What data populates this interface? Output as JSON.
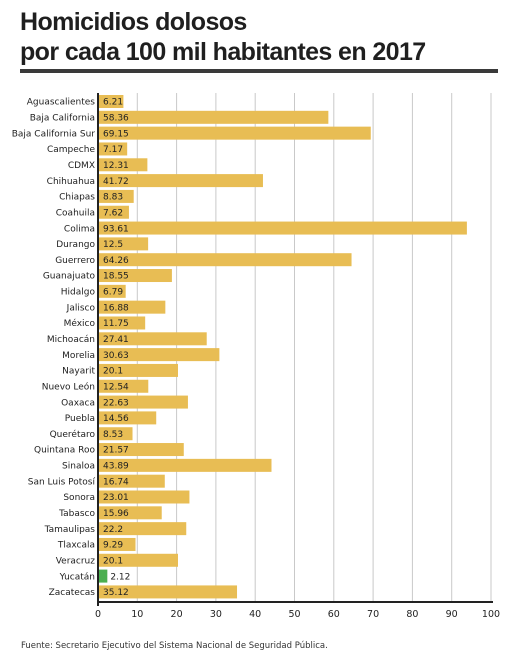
{
  "title_line1": "Homicidios dolosos",
  "title_line2": "por cada 100 mil habitantes en 2017",
  "source": "Fuente: Secretario Ejecutivo del Sistema Nacional de Seguridad Pública.",
  "colors": {
    "bar": "#e8bd54",
    "highlight": "#4caf50",
    "grid": "#c9c9c9",
    "axis": "#222222"
  },
  "chart_data": {
    "type": "bar",
    "orientation": "horizontal",
    "xlim": [
      0,
      100
    ],
    "xticks": [
      0,
      10,
      20,
      30,
      40,
      50,
      60,
      70,
      80,
      90,
      100
    ],
    "grid": true,
    "highlight_category": "Yucatán",
    "categories": [
      "Aguascalientes",
      "Baja California",
      "Baja California Sur",
      "Campeche",
      "CDMX",
      "Chihuahua",
      "Chiapas",
      "Coahuila",
      "Colima",
      "Durango",
      "Guerrero",
      "Guanajuato",
      "Hidalgo",
      "Jalisco",
      "México",
      "Michoacán",
      "Morelia",
      "Nayarit",
      "Nuevo León",
      "Oaxaca",
      "Puebla",
      "Querétaro",
      "Quintana Roo",
      "Sinaloa",
      "San Luis Potosí",
      "Sonora",
      "Tabasco",
      "Tamaulipas",
      "Tlaxcala",
      "Veracruz",
      "Yucatán",
      "Zacatecas"
    ],
    "values": [
      6.21,
      58.36,
      69.15,
      7.17,
      12.31,
      41.72,
      8.83,
      7.62,
      93.61,
      12.5,
      64.26,
      18.55,
      6.79,
      16.88,
      11.75,
      27.41,
      30.63,
      20.1,
      12.54,
      22.63,
      14.56,
      8.53,
      21.57,
      43.89,
      16.74,
      23.01,
      15.96,
      22.2,
      9.29,
      20.1,
      2.12,
      35.12
    ]
  }
}
